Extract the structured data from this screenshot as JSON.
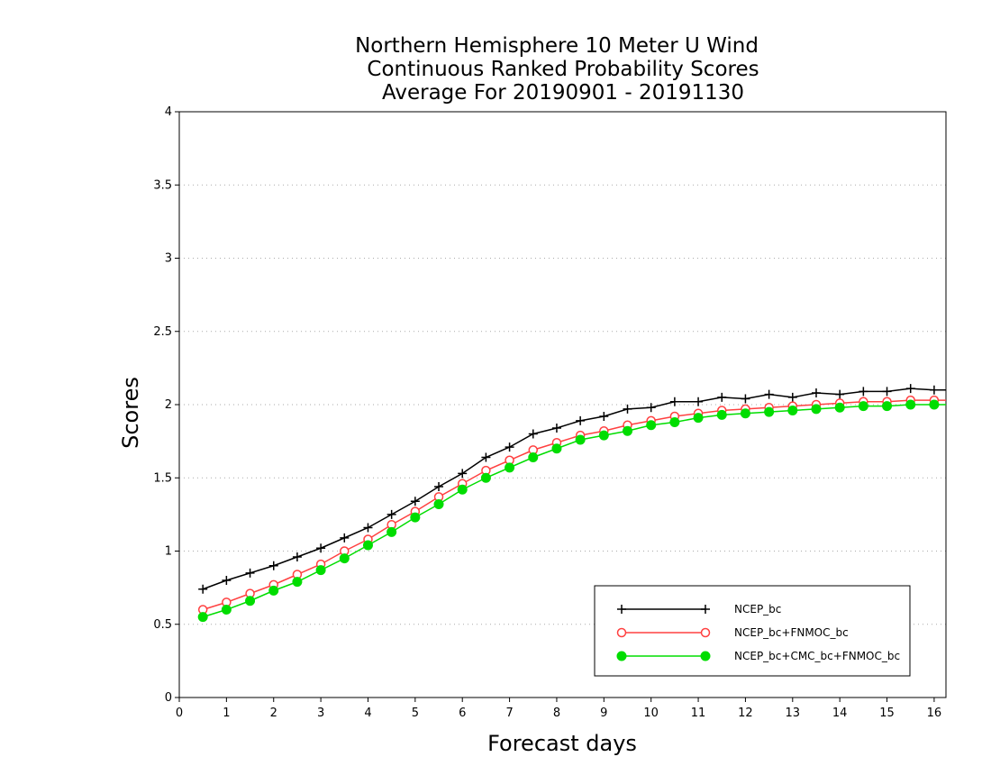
{
  "chart_data": {
    "type": "line",
    "title": [
      "Northern Hemisphere 10 Meter U Wind",
      "Continuous Ranked Probability Scores",
      "Average For 20190901 - 20191130"
    ],
    "xlabel": "Forecast days",
    "ylabel": "Scores",
    "xlim": [
      0,
      16.25
    ],
    "ylim": [
      0,
      4
    ],
    "xticks": [
      "0",
      "1",
      "2",
      "3",
      "4",
      "5",
      "6",
      "7",
      "8",
      "9",
      "10",
      "11",
      "12",
      "13",
      "14",
      "15",
      "16"
    ],
    "yticks": [
      "0",
      "0.5",
      "1",
      "1.5",
      "2",
      "2.5",
      "3",
      "3.5",
      "4"
    ],
    "grid": "horizontal dotted",
    "legend_position": "bottom-right",
    "x": [
      0.5,
      1,
      1.5,
      2,
      2.5,
      3,
      3.5,
      4,
      4.5,
      5,
      5.5,
      6,
      6.5,
      7,
      7.5,
      8,
      8.5,
      9,
      9.5,
      10,
      10.5,
      11,
      11.5,
      12,
      12.5,
      13,
      13.5,
      14,
      14.5,
      15,
      15.5,
      16,
      16.25
    ],
    "series": [
      {
        "name": "NCEP_bc",
        "color": "#000000",
        "marker": "plus",
        "values": [
          0.74,
          0.8,
          0.85,
          0.9,
          0.96,
          1.02,
          1.09,
          1.16,
          1.25,
          1.34,
          1.44,
          1.53,
          1.64,
          1.71,
          1.8,
          1.84,
          1.89,
          1.92,
          1.97,
          1.98,
          2.02,
          2.02,
          2.05,
          2.04,
          2.07,
          2.05,
          2.08,
          2.07,
          2.09,
          2.09,
          2.11,
          2.1,
          2.1
        ]
      },
      {
        "name": "NCEP_bc+FNMOC_bc",
        "color": "#ff4040",
        "marker": "open-circle",
        "values": [
          0.6,
          0.65,
          0.71,
          0.77,
          0.84,
          0.91,
          1.0,
          1.08,
          1.18,
          1.27,
          1.37,
          1.46,
          1.55,
          1.62,
          1.69,
          1.74,
          1.79,
          1.82,
          1.86,
          1.89,
          1.92,
          1.94,
          1.96,
          1.97,
          1.98,
          1.99,
          2.0,
          2.01,
          2.02,
          2.02,
          2.03,
          2.03,
          2.03
        ]
      },
      {
        "name": "NCEP_bc+CMC_bc+FNMOC_bc",
        "color": "#00dd00",
        "marker": "filled-circle",
        "values": [
          0.55,
          0.6,
          0.66,
          0.73,
          0.79,
          0.87,
          0.95,
          1.04,
          1.13,
          1.23,
          1.32,
          1.42,
          1.5,
          1.57,
          1.64,
          1.7,
          1.76,
          1.79,
          1.82,
          1.86,
          1.88,
          1.91,
          1.93,
          1.94,
          1.95,
          1.96,
          1.97,
          1.98,
          1.99,
          1.99,
          2.0,
          2.0,
          2.0
        ]
      }
    ]
  }
}
